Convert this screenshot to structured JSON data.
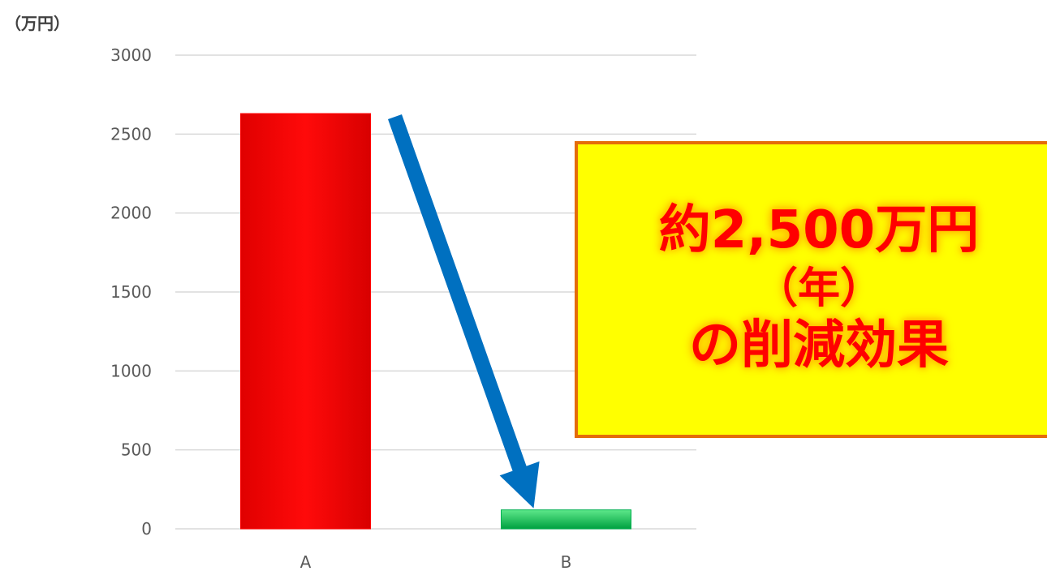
{
  "chart_data": {
    "type": "bar",
    "categories": [
      "A",
      "B"
    ],
    "values": [
      2630,
      120
    ],
    "unit_label": "（万円）",
    "ylim": [
      0,
      3000
    ],
    "yticks": [
      0,
      500,
      1000,
      1500,
      2000,
      2500,
      3000
    ],
    "grid": true,
    "bar_colors": [
      "#ff0000",
      "#00b050"
    ],
    "arrow_color": "#0070c0"
  },
  "callout": {
    "line1": "約2,500万円",
    "line2": "（年）",
    "line3": "の削減効果",
    "background": "#ffff00",
    "border_color": "#e46c0a",
    "text_color": "#ff0000"
  }
}
